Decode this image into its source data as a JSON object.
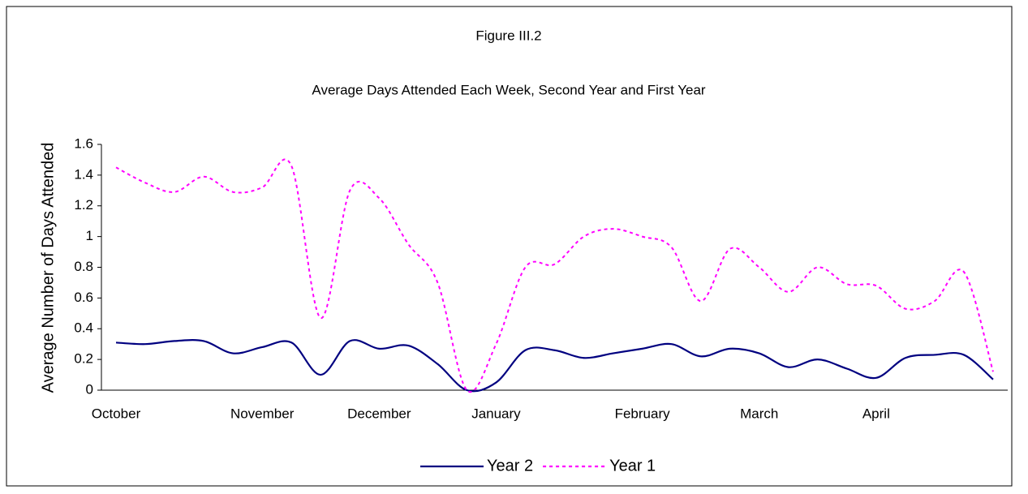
{
  "chart_data": {
    "type": "line",
    "title": "Figure III.2",
    "subtitle": "Average Days Attended Each Week, Second Year and First Year",
    "y_label": "Average Number of Days Attended",
    "categories": [
      "October",
      null,
      null,
      null,
      null,
      "November",
      null,
      null,
      null,
      "December",
      null,
      null,
      null,
      "January",
      null,
      null,
      null,
      null,
      "February",
      null,
      null,
      null,
      "March",
      null,
      null,
      null,
      "April",
      null,
      null,
      null,
      null
    ],
    "series": [
      {
        "name": "Year 2",
        "color": "#000080",
        "dash": false,
        "values": [
          0.31,
          0.3,
          0.32,
          0.32,
          0.24,
          0.28,
          0.31,
          0.1,
          0.32,
          0.27,
          0.29,
          0.17,
          0.0,
          0.05,
          0.26,
          0.26,
          0.21,
          0.24,
          0.27,
          0.3,
          0.22,
          0.27,
          0.24,
          0.15,
          0.2,
          0.14,
          0.08,
          0.21,
          0.23,
          0.23,
          0.07
        ]
      },
      {
        "name": "Year 1",
        "color": "#ff00ff",
        "dash": true,
        "values": [
          1.45,
          1.35,
          1.29,
          1.39,
          1.29,
          1.32,
          1.46,
          0.47,
          1.3,
          1.25,
          0.95,
          0.7,
          0.0,
          0.3,
          0.8,
          0.82,
          1.0,
          1.05,
          1.0,
          0.93,
          0.58,
          0.92,
          0.8,
          0.64,
          0.8,
          0.69,
          0.68,
          0.53,
          0.58,
          0.77,
          0.12
        ]
      }
    ],
    "ylim": [
      0,
      1.6
    ],
    "yticks": [
      0,
      0.2,
      0.4,
      0.6,
      0.8,
      1,
      1.2,
      1.4,
      1.6
    ],
    "grid": false,
    "legend": "bottom"
  }
}
